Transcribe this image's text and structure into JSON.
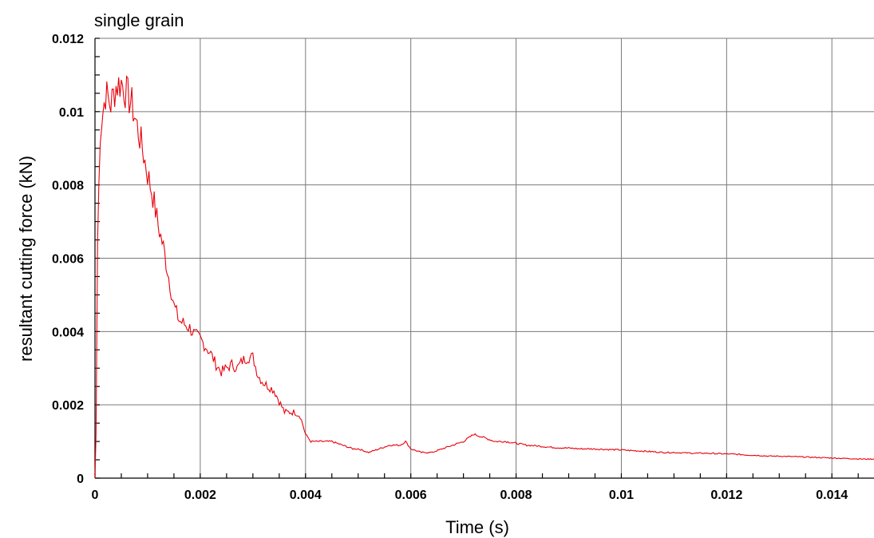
{
  "chart_data": {
    "type": "line",
    "title": "single grain",
    "xlabel": "Time (s)",
    "ylabel": "resultant cutting force (kN)",
    "xlim": [
      0,
      0.0148
    ],
    "ylim": [
      0,
      0.012
    ],
    "x_ticks": [
      0,
      0.002,
      0.004,
      0.006,
      0.008,
      0.01,
      0.012,
      0.014
    ],
    "x_tick_labels": [
      "0",
      "0.002",
      "0.004",
      "0.006",
      "0.008",
      "0.01",
      "0.012",
      "0.014"
    ],
    "y_ticks": [
      0,
      0.002,
      0.004,
      0.006,
      0.008,
      0.01,
      0.012
    ],
    "y_tick_labels": [
      "0",
      "0.002",
      "0.004",
      "0.006",
      "0.008",
      "0.01",
      "0.012"
    ],
    "grid": true,
    "series": [
      {
        "color": "#e8000b",
        "x": [
          0,
          2e-05,
          5e-05,
          0.0001,
          0.0002,
          0.0003,
          0.0004,
          0.0005,
          0.0006,
          0.0007,
          0.0008,
          0.0009,
          0.001,
          0.0011,
          0.0012,
          0.0013,
          0.0014,
          0.0015,
          0.0016,
          0.0017,
          0.0018,
          0.0019,
          0.002,
          0.0021,
          0.0022,
          0.0023,
          0.0024,
          0.0025,
          0.0026,
          0.0027,
          0.0028,
          0.0029,
          0.003,
          0.0031,
          0.0032,
          0.0033,
          0.0034,
          0.0035,
          0.0036,
          0.0037,
          0.0038,
          0.0039,
          0.004,
          0.0041,
          0.0042,
          0.0043,
          0.0045,
          0.0047,
          0.0049,
          0.005,
          0.0052,
          0.0054,
          0.0056,
          0.0058,
          0.0059,
          0.006,
          0.0062,
          0.0064,
          0.0066,
          0.0068,
          0.007,
          0.0072,
          0.0074,
          0.0076,
          0.0078,
          0.008,
          0.0082,
          0.0084,
          0.0086,
          0.0088,
          0.009,
          0.0092,
          0.0094,
          0.0096,
          0.0098,
          0.01,
          0.0102,
          0.0104,
          0.0106,
          0.0108,
          0.011,
          0.0112,
          0.0114,
          0.0116,
          0.0118,
          0.012,
          0.0122,
          0.0124,
          0.0126,
          0.0128,
          0.013,
          0.0132,
          0.0134,
          0.0136,
          0.0138,
          0.014,
          0.0142,
          0.0144,
          0.0146,
          0.0148
        ],
        "values": [
          0,
          0.0012,
          0.0065,
          0.0095,
          0.0105,
          0.0102,
          0.0107,
          0.0108,
          0.0105,
          0.0102,
          0.0096,
          0.009,
          0.0083,
          0.0077,
          0.0069,
          0.0063,
          0.0055,
          0.0047,
          0.0043,
          0.0042,
          0.0041,
          0.0039,
          0.0038,
          0.0036,
          0.0034,
          0.0031,
          0.0029,
          0.003,
          0.0031,
          0.003,
          0.0032,
          0.0033,
          0.0033,
          0.0028,
          0.0026,
          0.0025,
          0.0024,
          0.0021,
          0.0018,
          0.0018,
          0.0018,
          0.0017,
          0.0012,
          0.001,
          0.001,
          0.001,
          0.001,
          0.0009,
          0.0008,
          0.0008,
          0.0007,
          0.0008,
          0.0009,
          0.0009,
          0.001,
          0.0008,
          0.0007,
          0.0007,
          0.0008,
          0.0009,
          0.001,
          0.0012,
          0.0011,
          0.001,
          0.001,
          0.00095,
          0.0009,
          0.00088,
          0.00085,
          0.00083,
          0.00082,
          0.0008,
          0.0008,
          0.00079,
          0.00078,
          0.00077,
          0.00075,
          0.00074,
          0.00072,
          0.0007,
          0.0007,
          0.00069,
          0.00068,
          0.00068,
          0.00067,
          0.00066,
          0.00065,
          0.00063,
          0.00062,
          0.0006,
          0.0006,
          0.00059,
          0.00058,
          0.00057,
          0.00056,
          0.00055,
          0.00054,
          0.00053,
          0.00052,
          0.00052
        ]
      }
    ]
  }
}
